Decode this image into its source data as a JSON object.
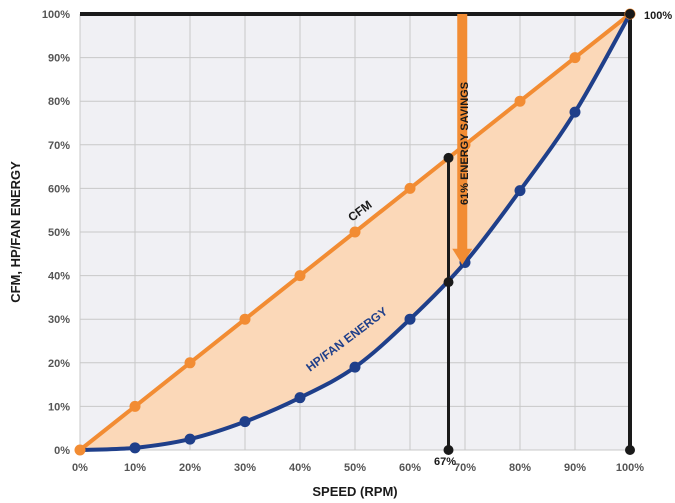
{
  "chart_data": {
    "type": "line",
    "title": "",
    "xlabel": "SPEED (RPM)",
    "ylabel": "CFM, HP/FAN ENERGY",
    "x_ticks": [
      "0%",
      "10%",
      "20%",
      "30%",
      "40%",
      "50%",
      "60%",
      "70%",
      "80%",
      "90%",
      "100%"
    ],
    "y_ticks": [
      "0%",
      "10%",
      "20%",
      "30%",
      "40%",
      "50%",
      "60%",
      "70%",
      "80%",
      "90%",
      "100%"
    ],
    "xlim": [
      0,
      100
    ],
    "ylim": [
      0,
      100
    ],
    "grid": true,
    "colors": {
      "cfm": "#f28c33",
      "energy": "#1f3f8a",
      "fill": "#fbd8b8",
      "grid": "#c8c8c8",
      "plot_bg": "#f0f0f4",
      "marker": "#1a1a1a",
      "arrow": "#f28c33"
    },
    "series": [
      {
        "name": "CFM",
        "x": [
          0,
          10,
          20,
          30,
          40,
          50,
          60,
          70,
          80,
          90,
          100
        ],
        "values": [
          0,
          10,
          20,
          30,
          40,
          50,
          60,
          70,
          80,
          90,
          100
        ]
      },
      {
        "name": "HP/FAN ENERGY",
        "x": [
          0,
          10,
          20,
          30,
          40,
          50,
          60,
          70,
          80,
          90,
          100
        ],
        "values": [
          0,
          0.5,
          2.5,
          6.5,
          12,
          19,
          30,
          43,
          59.5,
          77.5,
          100
        ]
      }
    ],
    "marker_speed": 67,
    "marker_speed_label": "67%",
    "marker_cfm": 67,
    "marker_energy": 38.5,
    "savings_label": "61% ENERGY SAVINGS",
    "top_right_label": "100%"
  }
}
